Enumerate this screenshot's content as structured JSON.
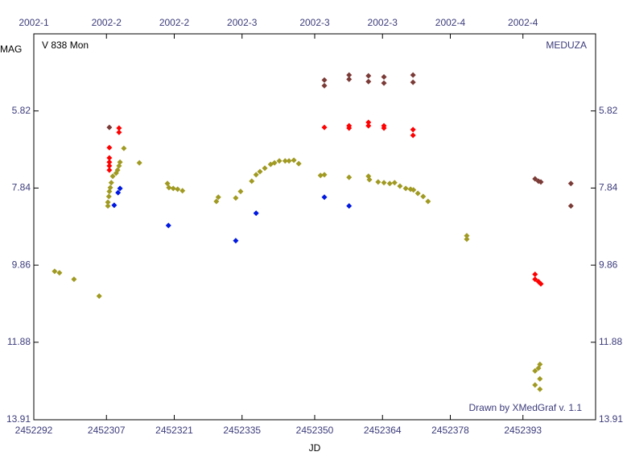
{
  "chart_data": {
    "type": "scatter",
    "title": "V 838 Mon",
    "source": "MEDUZA",
    "credit": "Drawn by XMedGraf v. 1.1",
    "x_label": "JD",
    "y_label": "MAG",
    "xlim": [
      2452292,
      2452408
    ],
    "xticks": [
      2452292,
      2452307,
      2452321,
      2452335,
      2452350,
      2452364,
      2452378,
      2452393
    ],
    "x2_labels": [
      "2002-1",
      "2002-2",
      "2002-2",
      "2002-3",
      "2002-3",
      "2002-3",
      "2002-4",
      "2002-4"
    ],
    "ylim": [
      3.8,
      13.91
    ],
    "y_inverted": true,
    "yticks": [
      5.82,
      7.84,
      9.86,
      11.88,
      13.91
    ],
    "series": [
      {
        "color": "#a09a22",
        "x": [
          2452296.3,
          2452297.3,
          2452300.3,
          2452305.5,
          2452307.3,
          2452307.3,
          2452307.5,
          2452307.6,
          2452307.8,
          2452308.0,
          2452308.3,
          2452309.0,
          2452309.3,
          2452309.6,
          2452309.8,
          2452310.6,
          2452313.8,
          2452319.6,
          2452319.9,
          2452320.8,
          2452321.7,
          2452322.7,
          2452329.7,
          2452330.1,
          2452333.7,
          2452334.7,
          2452337.0,
          2452337.9,
          2452338.7,
          2452339.7,
          2452340.9,
          2452341.7,
          2452342.7,
          2452343.9,
          2452344.7,
          2452345.7,
          2452346.7,
          2452351.2,
          2452352.0,
          2452357.1,
          2452361.1,
          2452361.3,
          2452363.1,
          2452364.3,
          2452365.5,
          2452366.5,
          2452367.6,
          2452368.8,
          2452369.8,
          2452370.4,
          2452371.3,
          2452372.4,
          2452373.4,
          2452381.4,
          2452381.4,
          2452395.5,
          2452395.5,
          2452396.2,
          2452396.5,
          2452396.5,
          2452396.5
        ],
        "values": [
          10.02,
          10.06,
          10.23,
          10.67,
          8.31,
          8.21,
          8.06,
          7.93,
          7.83,
          7.7,
          7.53,
          7.45,
          7.37,
          7.26,
          7.16,
          6.8,
          7.18,
          7.72,
          7.83,
          7.85,
          7.87,
          7.91,
          8.19,
          8.08,
          8.1,
          7.93,
          7.66,
          7.49,
          7.41,
          7.32,
          7.22,
          7.18,
          7.13,
          7.13,
          7.13,
          7.11,
          7.2,
          7.51,
          7.49,
          7.56,
          7.53,
          7.62,
          7.68,
          7.7,
          7.72,
          7.7,
          7.79,
          7.85,
          7.87,
          7.89,
          7.98,
          8.06,
          8.19,
          9.09,
          9.18,
          13.0,
          12.63,
          12.56,
          12.46,
          13.11,
          12.84
        ]
      },
      {
        "color": "#ff0000",
        "x": [
          2452307.6,
          2452307.6,
          2452307.6,
          2452307.6,
          2452307.6,
          2452309.6,
          2452309.6,
          2452352.0,
          2452357.1,
          2452357.1,
          2452361.1,
          2452361.1,
          2452364.3,
          2452364.3,
          2452370.3,
          2452370.3,
          2452395.5,
          2452395.5,
          2452396.2,
          2452396.7
        ],
        "values": [
          6.78,
          7.05,
          7.16,
          7.26,
          7.37,
          6.27,
          6.38,
          6.25,
          6.21,
          6.27,
          6.12,
          6.21,
          6.21,
          6.27,
          6.31,
          6.46,
          10.1,
          10.23,
          10.29,
          10.35
        ]
      },
      {
        "color": "#0018e0",
        "x": [
          2452308.6,
          2452309.4,
          2452309.8,
          2452319.8,
          2452333.7,
          2452337.9,
          2452352.0,
          2452357.1
        ],
        "values": [
          8.29,
          7.96,
          7.85,
          8.82,
          9.22,
          8.5,
          8.08,
          8.31
        ]
      },
      {
        "color": "#7a3a36",
        "x": [
          2452307.6,
          2452352.0,
          2452352.0,
          2452357.1,
          2452357.1,
          2452361.1,
          2452361.1,
          2452364.3,
          2452364.3,
          2452370.3,
          2452370.3,
          2452395.5,
          2452396.2,
          2452396.7,
          2452402.9,
          2452402.9
        ],
        "values": [
          6.25,
          5.01,
          5.16,
          4.88,
          4.99,
          4.9,
          5.05,
          4.93,
          5.09,
          4.88,
          5.07,
          7.6,
          7.66,
          7.68,
          7.72,
          8.31
        ]
      }
    ]
  }
}
